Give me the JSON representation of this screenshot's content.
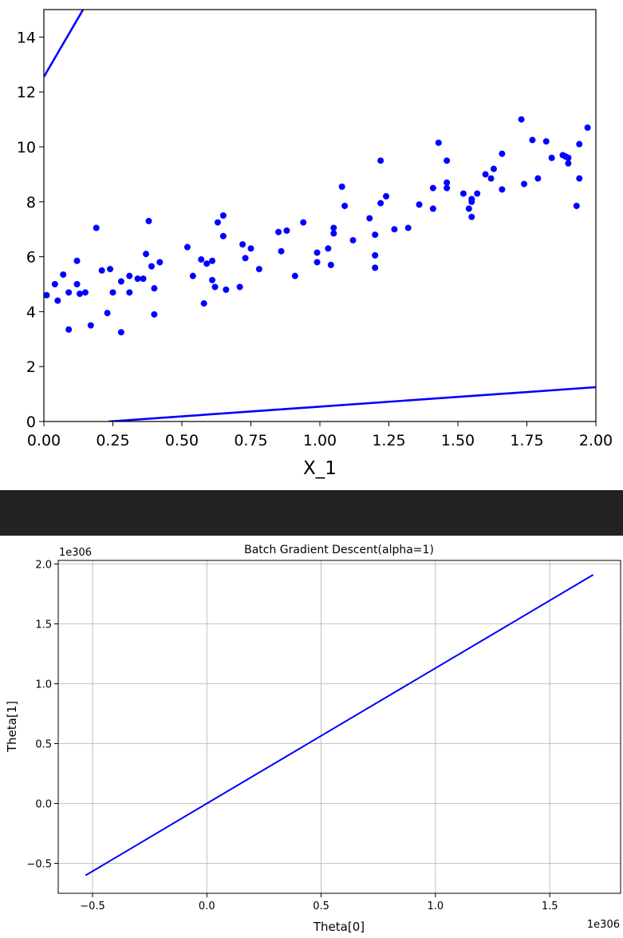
{
  "chart_data": [
    {
      "type": "scatter",
      "title": "",
      "xlabel": "X_1",
      "ylabel": "",
      "xlim": [
        0,
        2
      ],
      "ylim": [
        0,
        15
      ],
      "xticks": [
        "0.00",
        "0.25",
        "0.50",
        "0.75",
        "1.00",
        "1.25",
        "1.50",
        "1.75",
        "2.00"
      ],
      "yticks": [
        "0",
        "2",
        "4",
        "6",
        "8",
        "10",
        "12",
        "14"
      ],
      "grid": false,
      "point_color": "#0000ff",
      "line_color": "#0000ff",
      "points": [
        [
          0.01,
          4.6
        ],
        [
          0.04,
          5.0
        ],
        [
          0.05,
          4.4
        ],
        [
          0.07,
          5.35
        ],
        [
          0.09,
          3.35
        ],
        [
          0.09,
          4.7
        ],
        [
          0.12,
          5.85
        ],
        [
          0.12,
          5.0
        ],
        [
          0.13,
          4.65
        ],
        [
          0.15,
          4.7
        ],
        [
          0.17,
          3.5
        ],
        [
          0.19,
          7.05
        ],
        [
          0.21,
          5.5
        ],
        [
          0.23,
          3.95
        ],
        [
          0.24,
          5.55
        ],
        [
          0.25,
          4.7
        ],
        [
          0.28,
          3.25
        ],
        [
          0.28,
          5.1
        ],
        [
          0.31,
          5.3
        ],
        [
          0.31,
          4.7
        ],
        [
          0.34,
          5.2
        ],
        [
          0.36,
          5.2
        ],
        [
          0.37,
          6.1
        ],
        [
          0.38,
          7.3
        ],
        [
          0.39,
          5.65
        ],
        [
          0.4,
          3.9
        ],
        [
          0.4,
          4.85
        ],
        [
          0.42,
          5.8
        ],
        [
          0.52,
          6.35
        ],
        [
          0.54,
          5.3
        ],
        [
          0.57,
          5.9
        ],
        [
          0.58,
          4.3
        ],
        [
          0.59,
          5.75
        ],
        [
          0.61,
          5.85
        ],
        [
          0.61,
          5.15
        ],
        [
          0.62,
          4.9
        ],
        [
          0.63,
          7.25
        ],
        [
          0.65,
          7.5
        ],
        [
          0.65,
          6.75
        ],
        [
          0.66,
          4.8
        ],
        [
          0.71,
          4.9
        ],
        [
          0.72,
          6.45
        ],
        [
          0.73,
          5.95
        ],
        [
          0.75,
          6.3
        ],
        [
          0.78,
          5.55
        ],
        [
          0.85,
          6.9
        ],
        [
          0.86,
          6.2
        ],
        [
          0.88,
          6.95
        ],
        [
          0.91,
          5.3
        ],
        [
          0.94,
          7.25
        ],
        [
          0.99,
          6.15
        ],
        [
          0.99,
          5.8
        ],
        [
          1.03,
          6.3
        ],
        [
          1.04,
          5.7
        ],
        [
          1.05,
          7.05
        ],
        [
          1.05,
          6.85
        ],
        [
          1.08,
          8.55
        ],
        [
          1.09,
          7.85
        ],
        [
          1.12,
          6.6
        ],
        [
          1.18,
          7.4
        ],
        [
          1.2,
          6.05
        ],
        [
          1.2,
          5.6
        ],
        [
          1.2,
          6.8
        ],
        [
          1.22,
          9.5
        ],
        [
          1.22,
          7.95
        ],
        [
          1.24,
          8.2
        ],
        [
          1.27,
          7.0
        ],
        [
          1.32,
          7.05
        ],
        [
          1.36,
          7.9
        ],
        [
          1.41,
          8.5
        ],
        [
          1.41,
          7.75
        ],
        [
          1.43,
          10.15
        ],
        [
          1.46,
          8.7
        ],
        [
          1.46,
          8.5
        ],
        [
          1.46,
          9.5
        ],
        [
          1.52,
          8.3
        ],
        [
          1.54,
          7.75
        ],
        [
          1.55,
          8.0
        ],
        [
          1.55,
          7.45
        ],
        [
          1.55,
          8.1
        ],
        [
          1.57,
          8.3
        ],
        [
          1.6,
          9.0
        ],
        [
          1.62,
          8.85
        ],
        [
          1.63,
          9.2
        ],
        [
          1.66,
          9.75
        ],
        [
          1.66,
          8.45
        ],
        [
          1.73,
          11.0
        ],
        [
          1.74,
          8.65
        ],
        [
          1.77,
          10.25
        ],
        [
          1.79,
          8.85
        ],
        [
          1.82,
          10.2
        ],
        [
          1.84,
          9.6
        ],
        [
          1.88,
          9.7
        ],
        [
          1.89,
          9.65
        ],
        [
          1.9,
          9.6
        ],
        [
          1.9,
          9.4
        ],
        [
          1.93,
          7.85
        ],
        [
          1.94,
          10.1
        ],
        [
          1.94,
          8.85
        ],
        [
          1.97,
          10.7
        ]
      ],
      "lines": [
        [
          [
            0,
            12.55
          ],
          [
            0.171,
            15.5
          ]
        ],
        [
          [
            0.235,
            0
          ],
          [
            2.0,
            1.25
          ]
        ]
      ]
    },
    {
      "type": "line",
      "title": "Batch Gradient Descent(alpha=1)",
      "xlabel": "Theta[0]",
      "ylabel": "Theta[1]",
      "x_offset_label": "1e306",
      "y_offset_label": "1e306",
      "xlim": [
        -0.65,
        1.81
      ],
      "ylim": [
        -0.75,
        2.03
      ],
      "xticks": [
        "−0.5",
        "0.0",
        "0.5",
        "1.0",
        "1.5"
      ],
      "yticks": [
        "−0.5",
        "0.0",
        "0.5",
        "1.0",
        "1.5",
        "2.0"
      ],
      "grid": true,
      "line_color": "#0000ff",
      "series": [
        {
          "x": [
            -0.53,
            0,
            1.69
          ],
          "y": [
            -0.6,
            0,
            1.91
          ]
        }
      ]
    }
  ]
}
